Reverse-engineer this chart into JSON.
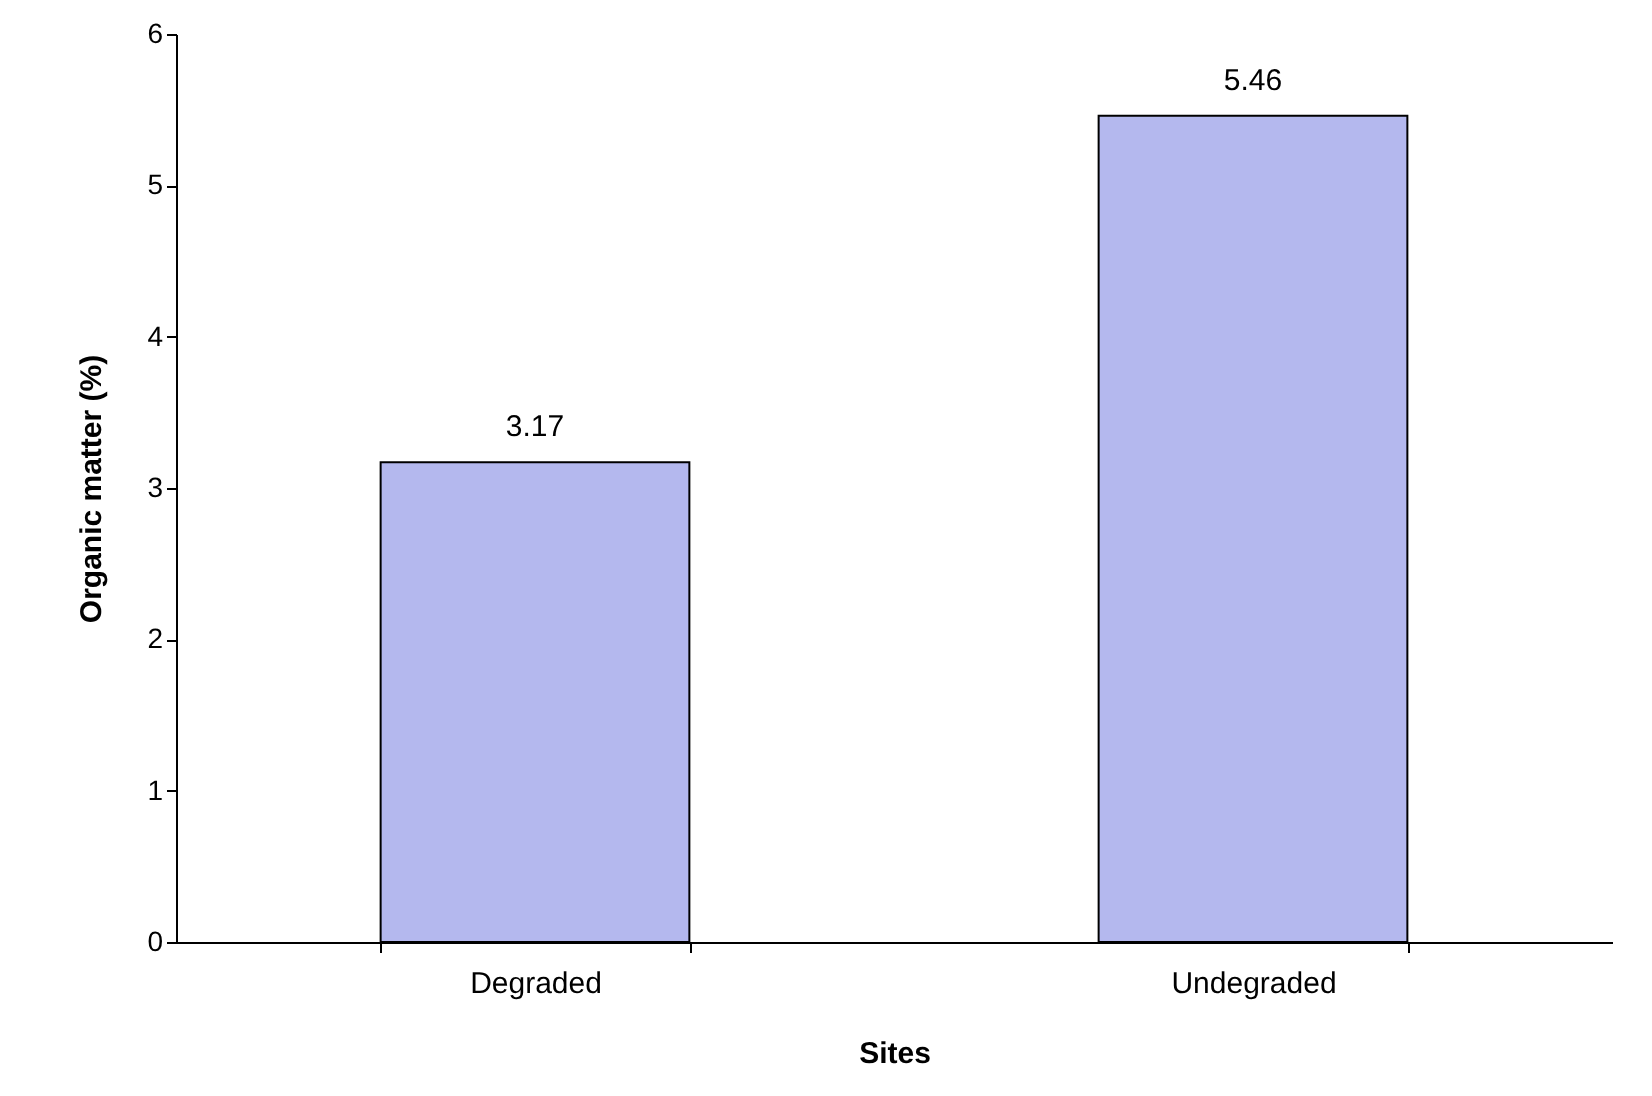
{
  "chart_data": {
    "type": "bar",
    "xlabel": "Sites",
    "ylabel": "Organic matter (%)",
    "categories": [
      "Degraded",
      "Undegraded"
    ],
    "values": [
      3.17,
      5.46
    ],
    "color": "#b4b8ee",
    "ylim": [
      0,
      6
    ],
    "yticks": [
      0,
      1,
      2,
      3,
      4,
      5,
      6
    ],
    "grid": false,
    "data_labels": true
  }
}
